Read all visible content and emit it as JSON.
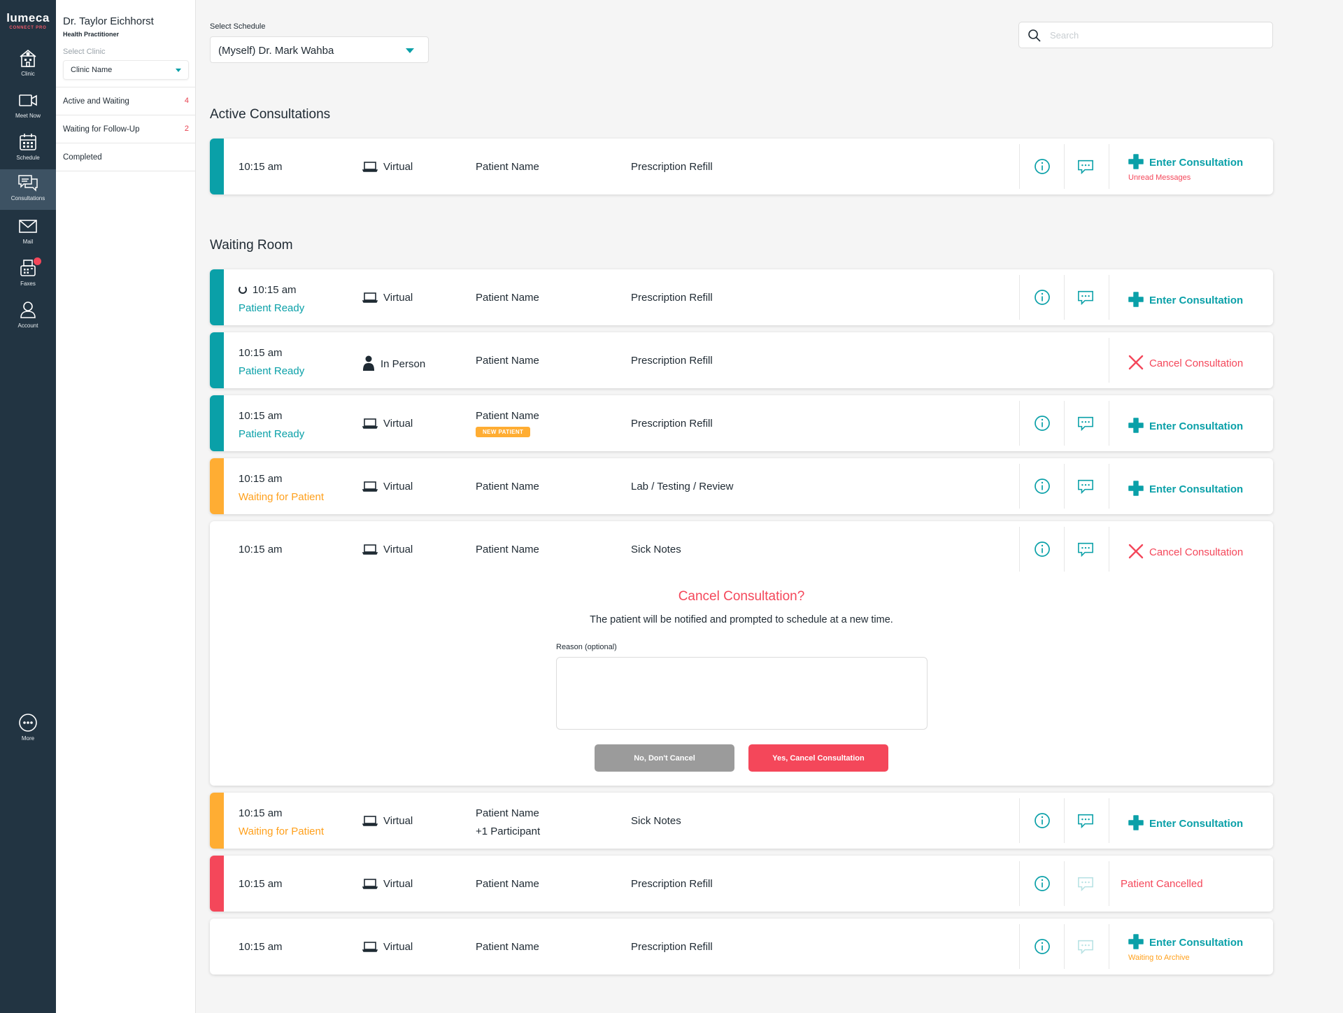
{
  "brand": {
    "name": "lumeca",
    "sub": "CONNECT PRO"
  },
  "nav": [
    {
      "id": "clinic",
      "label": "Clinic",
      "icon": "clinic-icon"
    },
    {
      "id": "meet",
      "label": "Meet Now",
      "icon": "video-camera-icon"
    },
    {
      "id": "schedule",
      "label": "Schedule",
      "icon": "calendar-icon"
    },
    {
      "id": "consultations",
      "label": "Consultations",
      "icon": "chat-bubbles-icon"
    },
    {
      "id": "mail",
      "label": "Mail",
      "icon": "envelope-icon"
    },
    {
      "id": "faxes",
      "label": "Faxes",
      "icon": "fax-icon"
    },
    {
      "id": "account",
      "label": "Account",
      "icon": "user-icon"
    },
    {
      "id": "more",
      "label": "More",
      "icon": "more-icon"
    }
  ],
  "panel": {
    "name": "Dr. Taylor Eichhorst",
    "role": "Health Practitioner",
    "select_label": "Select Clinic",
    "clinic_value": "Clinic Name",
    "menu": [
      {
        "label": "Active and Waiting",
        "count": "4"
      },
      {
        "label": "Waiting for Follow-Up",
        "count": "2"
      },
      {
        "label": "Completed",
        "count": ""
      }
    ]
  },
  "top": {
    "schedule_label": "Select Schedule",
    "schedule_value": "(Myself) Dr. Mark Wahba",
    "search_placeholder": "Search"
  },
  "sections": {
    "active": "Active Consultations",
    "waiting": "Waiting Room"
  },
  "colors": {
    "teal": "#0aa0a8",
    "orange": "#ffad33",
    "red": "#f4475a",
    "nav": "#223442"
  },
  "active_row": {
    "time": "10:15 am",
    "type": "Virtual",
    "patient": "Patient Name",
    "reason": "Prescription Refill",
    "action": "Enter Consultation",
    "sub": "Unread Messages"
  },
  "waiting_rows": [
    {
      "time": "10:15 am",
      "status": "Patient Ready",
      "type": "Virtual",
      "patient": "Patient Name",
      "reason": "Prescription Refill",
      "action": "Enter Consultation"
    },
    {
      "time": "10:15 am",
      "status": "Patient Ready",
      "type": "In Person",
      "patient": "Patient Name",
      "reason": "Prescription Refill",
      "action": "Cancel Consultation"
    },
    {
      "time": "10:15 am",
      "status": "Patient Ready",
      "type": "Virtual",
      "patient": "Patient Name",
      "badge": "NEW PATIENT",
      "reason": "Prescription Refill",
      "action": "Enter Consultation"
    },
    {
      "time": "10:15 am",
      "status": "Waiting for Patient",
      "type": "Virtual",
      "patient": "Patient Name",
      "reason": "Lab / Testing / Review",
      "action": "Enter Consultation"
    },
    {
      "time": "10:15 am",
      "type": "Virtual",
      "patient": "Patient Name",
      "reason": "Sick Notes",
      "action": "Cancel Consultation"
    },
    {
      "time": "10:15 am",
      "status": "Waiting for Patient",
      "type": "Virtual",
      "patient": "Patient Name",
      "participants": "+1 Participant",
      "reason": "Sick Notes",
      "action": "Enter Consultation"
    },
    {
      "time": "10:15 am",
      "type": "Virtual",
      "patient": "Patient Name",
      "reason": "Prescription Refill",
      "action": "Patient Cancelled"
    },
    {
      "time": "10:15 am",
      "type": "Virtual",
      "patient": "Patient Name",
      "reason": "Prescription Refill",
      "action": "Enter Consultation",
      "sub": "Waiting to Archive"
    }
  ],
  "cancel_dialog": {
    "title": "Cancel Consultation?",
    "text": "The patient will be notified and prompted to schedule at a new time.",
    "reason_label": "Reason (optional)",
    "no_label": "No, Don't Cancel",
    "yes_label": "Yes, Cancel Consultation"
  }
}
